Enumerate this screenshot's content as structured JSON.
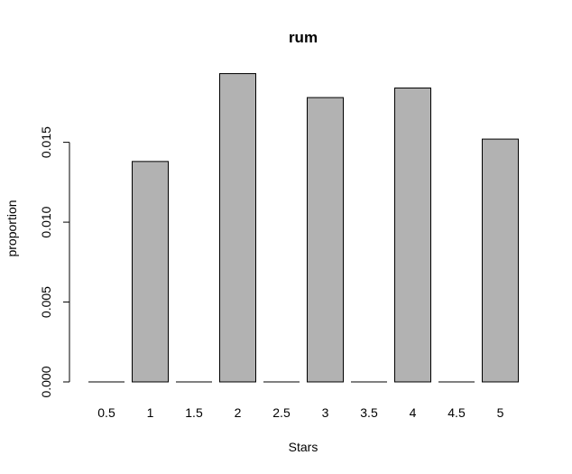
{
  "chart_data": {
    "type": "bar",
    "title": "rum",
    "xlabel": "Stars",
    "ylabel": "proportion",
    "categories": [
      "0.5",
      "1",
      "1.5",
      "2",
      "2.5",
      "3",
      "3.5",
      "4",
      "4.5",
      "5"
    ],
    "values": [
      0.0,
      0.0138,
      0.0,
      0.0193,
      0.0,
      0.0178,
      0.0,
      0.0184,
      0.0,
      0.0152
    ],
    "ylim": [
      0,
      0.0195
    ],
    "yticks": [
      "0.000",
      "0.005",
      "0.010",
      "0.015"
    ],
    "ytick_values": [
      0.0,
      0.005,
      0.01,
      0.015
    ],
    "grid": false,
    "colors": {
      "bar_fill": "#b2b2b2",
      "bar_stroke": "#000000",
      "background": "#ffffff"
    }
  }
}
